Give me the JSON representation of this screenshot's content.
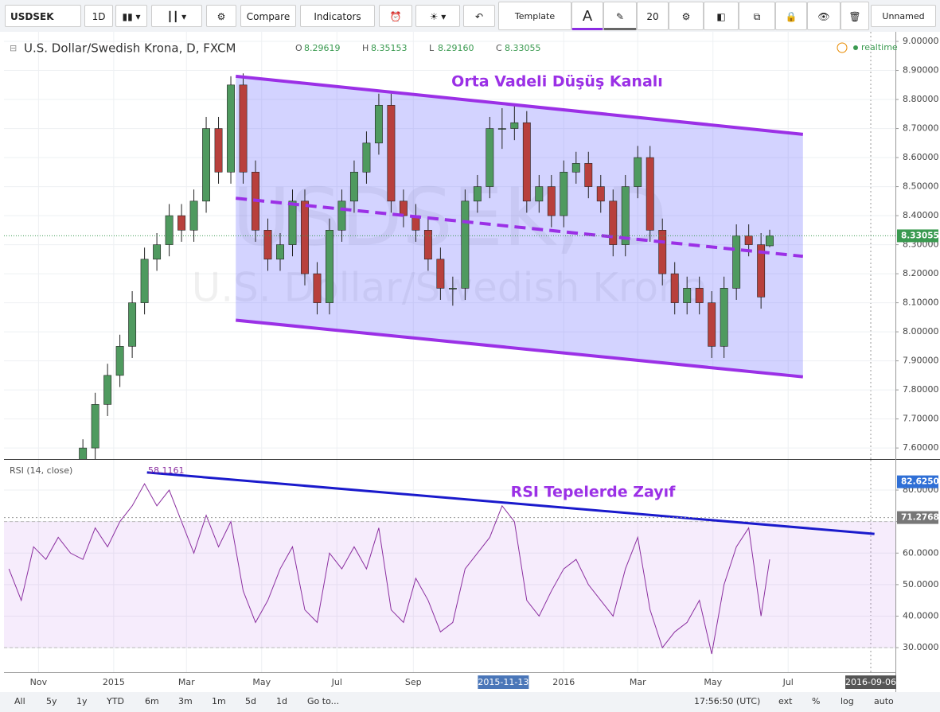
{
  "toolbar": {
    "symbol": "USDSEK",
    "interval": "1D",
    "compare": "Compare",
    "indicators": "Indicators",
    "template": "Template",
    "font_size": 20,
    "layout": "Unnamed"
  },
  "bottom_bar": {
    "ranges": [
      "All",
      "5y",
      "1y",
      "YTD",
      "6m",
      "3m",
      "1m",
      "5d",
      "1d"
    ],
    "goto": "Go to...",
    "time": "17:56:50 (UTC)",
    "options": [
      "ext",
      "%",
      "log",
      "auto"
    ]
  },
  "chart_data": [
    {
      "type": "candlestick",
      "title": "U.S. Dollar/Swedish Krona, D, FXCM",
      "status": "realtime",
      "watermarks": [
        "USDSEK, D",
        "U.S. Dollar/Swedish Krona"
      ],
      "header_values": [
        {
          "name": "O",
          "value": 8.29619,
          "label": "8.29619"
        },
        {
          "name": "H",
          "value": 8.35153,
          "label": "8.35153"
        },
        {
          "name": "L",
          "value": 8.2916,
          "label": "8.29160"
        },
        {
          "name": "C",
          "value": 8.33055,
          "label": "8.33055"
        }
      ],
      "up_color": "#4f9a5f",
      "down_color": "#b8403c",
      "x": [
        -25,
        -15,
        -5,
        5,
        15,
        25,
        35,
        45,
        55,
        65,
        75,
        85,
        95,
        105,
        115,
        125,
        135,
        145,
        155,
        165,
        175,
        185,
        195,
        205,
        215,
        225,
        235,
        245,
        255,
        265,
        275,
        285,
        295,
        305,
        315,
        325,
        335,
        345,
        355,
        365,
        375,
        385,
        395,
        405,
        415,
        425,
        435,
        445,
        455,
        465,
        475,
        485,
        495,
        505,
        515,
        525,
        532
      ],
      "open": [
        7.56,
        7.6,
        7.75,
        7.85,
        7.95,
        8.1,
        8.25,
        8.3,
        8.4,
        8.35,
        8.45,
        8.7,
        8.55,
        8.85,
        8.55,
        8.35,
        8.25,
        8.3,
        8.45,
        8.2,
        8.1,
        8.35,
        8.45,
        8.55,
        8.65,
        8.78,
        8.45,
        8.4,
        8.35,
        8.25,
        8.15,
        8.15,
        8.45,
        8.5,
        8.7,
        8.7,
        8.72,
        8.45,
        8.5,
        8.4,
        8.55,
        8.58,
        8.5,
        8.45,
        8.3,
        8.5,
        8.6,
        8.35,
        8.2,
        8.1,
        8.15,
        8.1,
        7.95,
        8.15,
        8.33,
        8.3,
        8.29619
      ],
      "high": [
        7.63,
        7.79,
        7.89,
        7.99,
        8.14,
        8.29,
        8.34,
        8.44,
        8.44,
        8.49,
        8.74,
        8.74,
        8.88,
        8.89,
        8.59,
        8.39,
        8.34,
        8.49,
        8.49,
        8.24,
        8.39,
        8.49,
        8.59,
        8.69,
        8.82,
        8.82,
        8.49,
        8.44,
        8.39,
        8.29,
        8.19,
        8.49,
        8.54,
        8.74,
        8.77,
        8.78,
        8.76,
        8.54,
        8.54,
        8.59,
        8.62,
        8.62,
        8.54,
        8.49,
        8.54,
        8.64,
        8.64,
        8.39,
        8.24,
        8.19,
        8.19,
        8.14,
        8.19,
        8.37,
        8.37,
        8.34,
        8.35153
      ],
      "low": [
        7.52,
        7.56,
        7.71,
        7.81,
        7.91,
        8.06,
        8.21,
        8.26,
        8.31,
        8.31,
        8.41,
        8.51,
        8.51,
        8.51,
        8.31,
        8.21,
        8.21,
        8.26,
        8.16,
        8.06,
        8.06,
        8.31,
        8.41,
        8.51,
        8.61,
        8.41,
        8.36,
        8.31,
        8.21,
        8.11,
        8.09,
        8.11,
        8.41,
        8.46,
        8.63,
        8.66,
        8.41,
        8.41,
        8.36,
        8.36,
        8.51,
        8.46,
        8.41,
        8.26,
        8.26,
        8.46,
        8.31,
        8.16,
        8.06,
        8.06,
        8.06,
        7.91,
        7.91,
        8.11,
        8.26,
        8.08,
        8.2916
      ],
      "close": [
        7.6,
        7.75,
        7.85,
        7.95,
        8.1,
        8.25,
        8.3,
        8.4,
        8.35,
        8.45,
        8.7,
        8.55,
        8.85,
        8.55,
        8.35,
        8.25,
        8.3,
        8.45,
        8.2,
        8.1,
        8.35,
        8.45,
        8.55,
        8.65,
        8.78,
        8.45,
        8.4,
        8.35,
        8.25,
        8.15,
        8.15,
        8.45,
        8.5,
        8.7,
        8.7,
        8.72,
        8.45,
        8.5,
        8.4,
        8.55,
        8.58,
        8.5,
        8.45,
        8.3,
        8.5,
        8.6,
        8.35,
        8.2,
        8.1,
        8.15,
        8.1,
        7.95,
        8.15,
        8.33,
        8.3,
        8.12,
        8.33055
      ],
      "xlim": [
        -89,
        634
      ],
      "ylim": [
        7.562,
        9.033
      ],
      "yticks": [
        {
          "value": 7.6,
          "label": "7.60000"
        },
        {
          "value": 7.7,
          "label": "7.70000"
        },
        {
          "value": 7.8,
          "label": "7.80000"
        },
        {
          "value": 7.9,
          "label": "7.90000"
        },
        {
          "value": 8.0,
          "label": "8.00000"
        },
        {
          "value": 8.1,
          "label": "8.10000"
        },
        {
          "value": 8.2,
          "label": "8.20000"
        },
        {
          "value": 8.3,
          "label": "8.30000"
        },
        {
          "value": 8.4,
          "label": "8.40000"
        },
        {
          "value": 8.5,
          "label": "8.50000"
        },
        {
          "value": 8.6,
          "label": "8.60000"
        },
        {
          "value": 8.7,
          "label": "8.70000"
        },
        {
          "value": 8.8,
          "label": "8.80000"
        },
        {
          "value": 8.9,
          "label": "8.90000"
        },
        {
          "value": 9.0,
          "label": "9.00000"
        }
      ],
      "channel": {
        "color": "#9b30e6",
        "fill": "rgba(110,110,255,0.3)",
        "upper": [
          {
            "x": 99,
            "y": 8.88
          },
          {
            "x": 559,
            "y": 8.68
          }
        ],
        "middle": [
          {
            "x": 99,
            "y": 8.46
          },
          {
            "x": 559,
            "y": 8.26
          }
        ],
        "lower": [
          {
            "x": 99,
            "y": 8.04
          },
          {
            "x": 559,
            "y": 7.845
          }
        ]
      },
      "annotation": "Orta Vadeli Düşüş Kanalı"
    },
    {
      "type": "line",
      "title": "RSI (14, close)",
      "current": 58.1161,
      "color": "#8b2fa0",
      "band": [
        30,
        70
      ],
      "x": [
        -85,
        -75,
        -65,
        -55,
        -45,
        -35,
        -25,
        -15,
        -5,
        5,
        15,
        25,
        35,
        45,
        55,
        65,
        75,
        85,
        95,
        105,
        115,
        125,
        135,
        145,
        155,
        165,
        175,
        185,
        195,
        205,
        215,
        225,
        235,
        245,
        255,
        265,
        275,
        285,
        295,
        305,
        315,
        325,
        335,
        345,
        355,
        365,
        375,
        385,
        395,
        405,
        415,
        425,
        435,
        445,
        455,
        465,
        475,
        485,
        495,
        505,
        515,
        525,
        532
      ],
      "values": [
        55,
        45,
        62,
        58,
        65,
        60,
        58,
        68,
        62,
        70,
        75,
        82,
        75,
        80,
        70,
        60,
        72,
        62,
        70,
        48,
        38,
        45,
        55,
        62,
        42,
        38,
        60,
        55,
        62,
        55,
        68,
        42,
        38,
        52,
        45,
        35,
        38,
        55,
        60,
        65,
        75,
        70,
        45,
        40,
        48,
        55,
        58,
        50,
        45,
        40,
        55,
        65,
        42,
        30,
        35,
        38,
        45,
        28,
        50,
        62,
        68,
        40,
        58
      ],
      "xlim": [
        -89,
        634
      ],
      "ylim": [
        22.2,
        89.6
      ],
      "yticks": [
        {
          "value": 30,
          "label": "30.0000"
        },
        {
          "value": 40,
          "label": "40.0000"
        },
        {
          "value": 50,
          "label": "50.0000"
        },
        {
          "value": 60,
          "label": "60.0000"
        },
        {
          "value": 70,
          "label": "70.0000"
        },
        {
          "value": 80,
          "label": "80.0000"
        }
      ],
      "xticks": [
        {
          "value": -61,
          "label": "Nov"
        },
        {
          "value": 0,
          "label": "2015"
        },
        {
          "value": 59,
          "label": "Mar"
        },
        {
          "value": 120,
          "label": "May"
        },
        {
          "value": 181,
          "label": "Jul"
        },
        {
          "value": 243,
          "label": "Sep"
        },
        {
          "value": 365,
          "label": "2016"
        },
        {
          "value": 425,
          "label": "Mar"
        },
        {
          "value": 486,
          "label": "May"
        },
        {
          "value": 547,
          "label": "Jul"
        }
      ],
      "x_markers": [
        {
          "value": 316,
          "label": "2015-11-13"
        },
        {
          "value": 614,
          "label": "2016-09-06"
        }
      ],
      "trendline": {
        "color": "#1a1acc",
        "points": [
          {
            "x": 27,
            "y": 85.6
          },
          {
            "x": 617,
            "y": 66.1
          }
        ]
      },
      "axis_labels": [
        {
          "value": 82.625,
          "label": "82.6250"
        },
        {
          "value": 71.2768,
          "label": "71.2768"
        }
      ],
      "annotation": "RSI Tepelerde Zayıf"
    }
  ]
}
